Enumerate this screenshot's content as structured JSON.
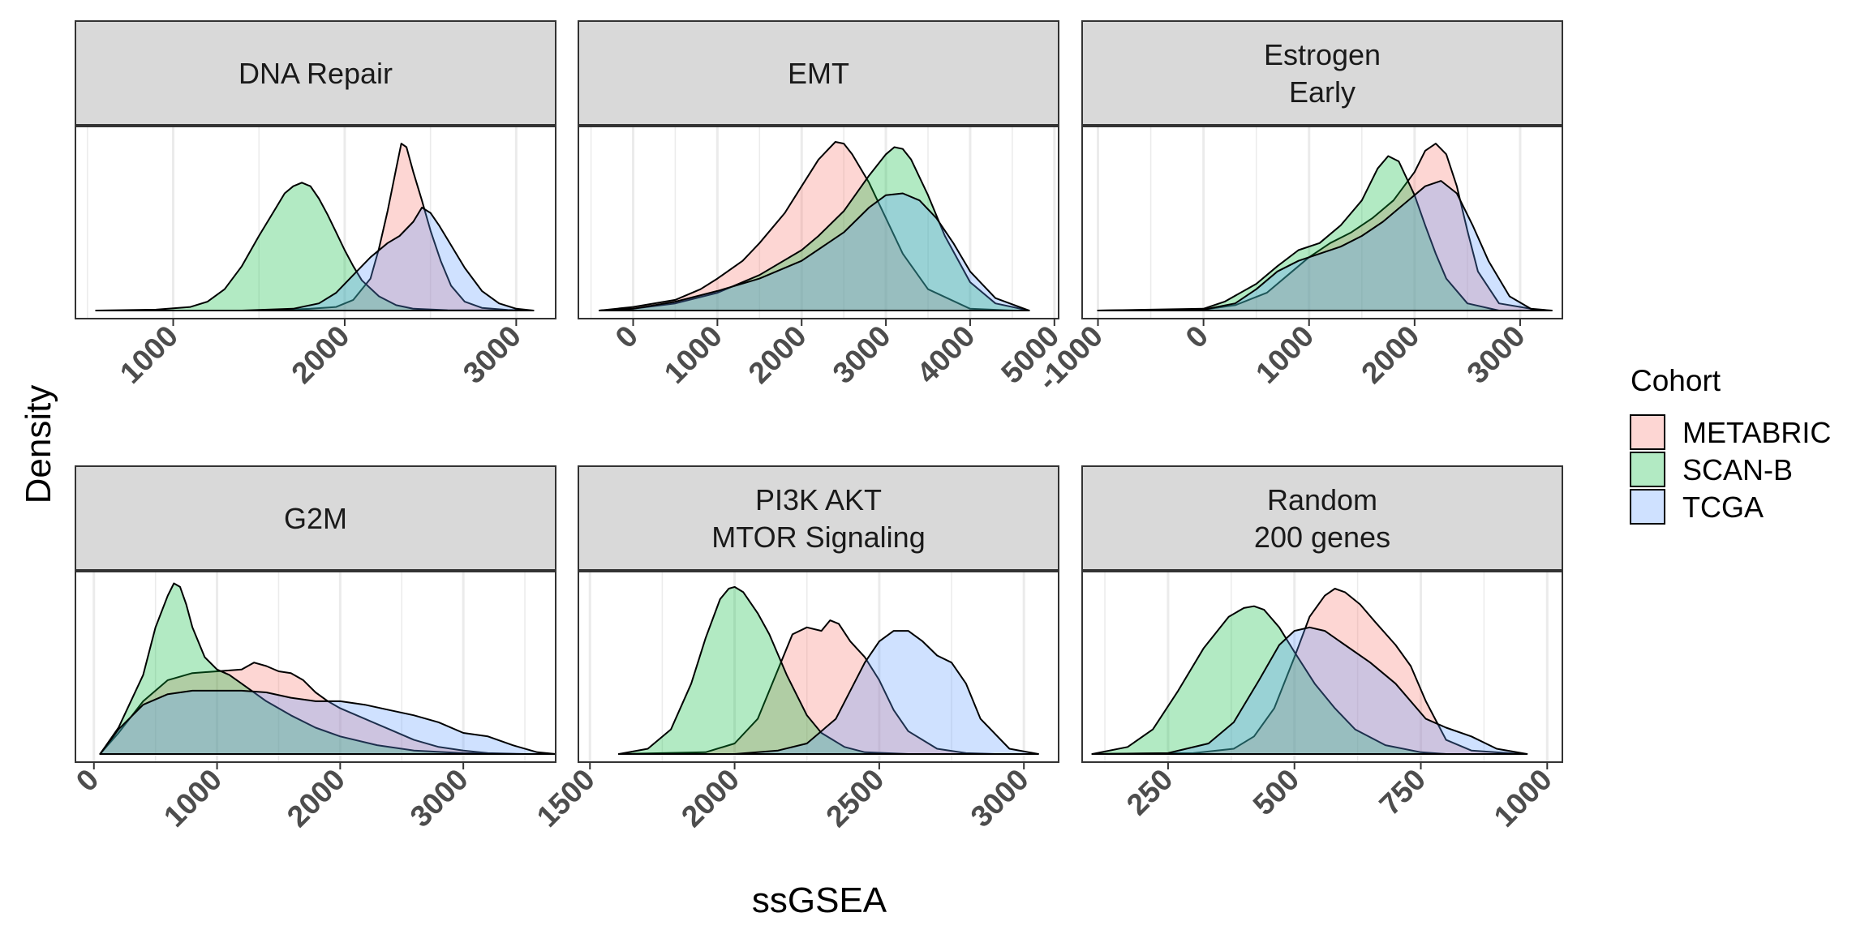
{
  "chart_data": {
    "type": "area",
    "subtype": "faceted density plot",
    "xlabel": "ssGSEA",
    "ylabel": "Density",
    "grid": true,
    "legend": {
      "title": "Cohort",
      "position": "right",
      "entries": [
        {
          "name": "METABRIC",
          "color": "#F8766D"
        },
        {
          "name": "SCAN-B",
          "color": "#00BA38"
        },
        {
          "name": "TCGA",
          "color": "#619CFF"
        }
      ]
    },
    "colors": {
      "METABRIC": "#F8766D",
      "SCAN-B": "#00BA38",
      "TCGA": "#619CFF",
      "strip_bg": "#D9D9D9",
      "grid": "#EBEBEB"
    },
    "facets": [
      {
        "title_lines": [
          "DNA Repair"
        ],
        "xlim": [
          430,
          3230
        ],
        "ticks": [
          1000,
          2000,
          3000
        ],
        "ymax": 1.0,
        "series": [
          {
            "name": "METABRIC",
            "x": [
              550,
              1500,
              1800,
              1950,
              2050,
              2150,
              2200,
              2250,
              2300,
              2330,
              2360,
              2400,
              2450,
              2500,
              2560,
              2620,
              2700,
              2800,
              2950,
              3100
            ],
            "y": [
              0,
              0,
              0.01,
              0.02,
              0.06,
              0.18,
              0.35,
              0.56,
              0.8,
              0.94,
              0.92,
              0.78,
              0.62,
              0.45,
              0.28,
              0.14,
              0.05,
              0.015,
              0.003,
              0
            ]
          },
          {
            "name": "SCAN-B",
            "x": [
              550,
              900,
              1100,
              1200,
              1300,
              1400,
              1500,
              1600,
              1650,
              1700,
              1750,
              1800,
              1850,
              1900,
              1950,
              2000,
              2050,
              2100,
              2200,
              2300,
              2400,
              2600,
              3100
            ],
            "y": [
              0,
              0.005,
              0.02,
              0.05,
              0.12,
              0.25,
              0.42,
              0.58,
              0.66,
              0.7,
              0.72,
              0.7,
              0.63,
              0.54,
              0.44,
              0.34,
              0.25,
              0.17,
              0.08,
              0.03,
              0.01,
              0.002,
              0
            ]
          },
          {
            "name": "TCGA",
            "x": [
              550,
              1400,
              1700,
              1850,
              1950,
              2050,
              2150,
              2250,
              2320,
              2400,
              2450,
              2500,
              2550,
              2600,
              2700,
              2800,
              2900,
              3000,
              3100
            ],
            "y": [
              0,
              0,
              0.01,
              0.04,
              0.1,
              0.2,
              0.3,
              0.38,
              0.42,
              0.5,
              0.58,
              0.55,
              0.48,
              0.4,
              0.24,
              0.11,
              0.04,
              0.01,
              0
            ]
          }
        ]
      },
      {
        "title_lines": [
          "EMT"
        ],
        "xlim": [
          -650,
          5050
        ],
        "ticks": [
          0,
          1000,
          2000,
          3000,
          4000,
          5000
        ],
        "ymax": 1.0,
        "series": [
          {
            "name": "METABRIC",
            "x": [
              -400,
              0,
              500,
              800,
              1000,
              1300,
              1500,
              1800,
              2000,
              2200,
              2400,
              2500,
              2600,
              2800,
              3000,
              3200,
              3500,
              4000,
              4500
            ],
            "y": [
              0,
              0.02,
              0.06,
              0.12,
              0.18,
              0.28,
              0.38,
              0.55,
              0.7,
              0.85,
              0.95,
              0.94,
              0.88,
              0.72,
              0.52,
              0.32,
              0.12,
              0.01,
              0
            ]
          },
          {
            "name": "SCAN-B",
            "x": [
              -400,
              0,
              500,
              1000,
              1500,
              2000,
              2200,
              2500,
              2800,
              3000,
              3100,
              3200,
              3300,
              3500,
              3700,
              4000,
              4300,
              4700
            ],
            "y": [
              0,
              0.01,
              0.04,
              0.1,
              0.2,
              0.34,
              0.42,
              0.56,
              0.76,
              0.88,
              0.92,
              0.91,
              0.85,
              0.65,
              0.42,
              0.16,
              0.04,
              0
            ]
          },
          {
            "name": "TCGA",
            "x": [
              -400,
              0,
              500,
              1000,
              1500,
              2000,
              2500,
              2800,
              3000,
              3200,
              3400,
              3600,
              3800,
              4000,
              4300,
              4700
            ],
            "y": [
              0,
              0.01,
              0.05,
              0.11,
              0.18,
              0.28,
              0.44,
              0.58,
              0.65,
              0.66,
              0.62,
              0.52,
              0.38,
              0.22,
              0.07,
              0
            ]
          }
        ]
      },
      {
        "title_lines": [
          "Estrogen",
          "Early"
        ],
        "xlim": [
          -1150,
          3400
        ],
        "ticks": [
          -1000,
          0,
          1000,
          2000,
          3000
        ],
        "ymax": 1.0,
        "series": [
          {
            "name": "METABRIC",
            "x": [
              -1000,
              0,
              300,
              600,
              800,
              1000,
              1200,
              1400,
              1600,
              1800,
              2000,
              2100,
              2200,
              2300,
              2400,
              2500,
              2600,
              2800,
              3200
            ],
            "y": [
              0,
              0.005,
              0.03,
              0.1,
              0.2,
              0.3,
              0.38,
              0.44,
              0.52,
              0.62,
              0.78,
              0.9,
              0.94,
              0.88,
              0.7,
              0.45,
              0.22,
              0.04,
              0
            ]
          },
          {
            "name": "SCAN-B",
            "x": [
              -1000,
              0,
              200,
              500,
              700,
              900,
              1100,
              1300,
              1500,
              1650,
              1750,
              1850,
              2000,
              2100,
              2200,
              2300,
              2500,
              2800
            ],
            "y": [
              0,
              0.01,
              0.05,
              0.15,
              0.25,
              0.34,
              0.38,
              0.48,
              0.62,
              0.8,
              0.87,
              0.84,
              0.65,
              0.48,
              0.32,
              0.18,
              0.04,
              0
            ]
          },
          {
            "name": "TCGA",
            "x": [
              -1000,
              0,
              300,
              500,
              700,
              900,
              1100,
              1300,
              1500,
              1700,
              1900,
              2100,
              2250,
              2400,
              2550,
              2700,
              2900,
              3100,
              3300
            ],
            "y": [
              0,
              0.005,
              0.04,
              0.12,
              0.22,
              0.28,
              0.32,
              0.36,
              0.42,
              0.5,
              0.6,
              0.7,
              0.73,
              0.66,
              0.48,
              0.28,
              0.08,
              0.01,
              0
            ]
          }
        ]
      },
      {
        "title_lines": [
          "G2M"
        ],
        "xlim": [
          -150,
          3750
        ],
        "ticks": [
          0,
          1000,
          2000,
          3000
        ],
        "ymax": 1.0,
        "series": [
          {
            "name": "METABRIC",
            "x": [
              50,
              200,
              400,
              600,
              800,
              1000,
              1200,
              1300,
              1400,
              1500,
              1600,
              1700,
              1800,
              1900,
              2000,
              2200,
              2400,
              2600,
              2800,
              3000,
              3200,
              3500
            ],
            "y": [
              0,
              0.12,
              0.3,
              0.42,
              0.46,
              0.47,
              0.48,
              0.52,
              0.5,
              0.47,
              0.46,
              0.42,
              0.35,
              0.3,
              0.26,
              0.2,
              0.14,
              0.08,
              0.04,
              0.02,
              0.005,
              0
            ]
          },
          {
            "name": "SCAN-B",
            "x": [
              50,
              200,
              400,
              500,
              600,
              650,
              700,
              750,
              800,
              900,
              1000,
              1100,
              1200,
              1400,
              1600,
              1800,
              2000,
              2300,
              2600,
              3000,
              3400
            ],
            "y": [
              0,
              0.15,
              0.45,
              0.72,
              0.9,
              0.97,
              0.95,
              0.85,
              0.72,
              0.55,
              0.48,
              0.45,
              0.4,
              0.3,
              0.22,
              0.15,
              0.1,
              0.05,
              0.02,
              0.005,
              0
            ]
          },
          {
            "name": "TCGA",
            "x": [
              50,
              200,
              400,
              600,
              800,
              1000,
              1200,
              1400,
              1600,
              1800,
              2000,
              2200,
              2400,
              2600,
              2800,
              3000,
              3200,
              3400,
              3600,
              3750
            ],
            "y": [
              0,
              0.14,
              0.28,
              0.34,
              0.36,
              0.36,
              0.36,
              0.35,
              0.32,
              0.3,
              0.3,
              0.28,
              0.25,
              0.22,
              0.18,
              0.12,
              0.1,
              0.05,
              0.01,
              0
            ]
          }
        ]
      },
      {
        "title_lines": [
          "PI3K AKT",
          "MTOR Signaling"
        ],
        "xlim": [
          1460,
          3120
        ],
        "ticks": [
          1500,
          2000,
          2500,
          3000
        ],
        "ymax": 1.0,
        "series": [
          {
            "name": "METABRIC",
            "x": [
              1600,
              1900,
              2000,
              2080,
              2150,
              2200,
              2250,
              2300,
              2330,
              2360,
              2400,
              2450,
              2500,
              2550,
              2600,
              2700,
              2800,
              2900
            ],
            "y": [
              0,
              0.01,
              0.06,
              0.2,
              0.48,
              0.68,
              0.72,
              0.7,
              0.76,
              0.74,
              0.64,
              0.55,
              0.42,
              0.25,
              0.13,
              0.03,
              0.005,
              0
            ]
          },
          {
            "name": "SCAN-B",
            "x": [
              1600,
              1700,
              1780,
              1850,
              1900,
              1950,
              1980,
              2000,
              2030,
              2080,
              2120,
              2180,
              2250,
              2300,
              2380,
              2450,
              2600
            ],
            "y": [
              0,
              0.03,
              0.14,
              0.4,
              0.66,
              0.88,
              0.94,
              0.95,
              0.92,
              0.8,
              0.68,
              0.45,
              0.22,
              0.12,
              0.04,
              0.01,
              0
            ]
          },
          {
            "name": "TCGA",
            "x": [
              1600,
              2000,
              2150,
              2250,
              2350,
              2450,
              2500,
              2550,
              2600,
              2650,
              2700,
              2750,
              2800,
              2850,
              2950,
              3050
            ],
            "y": [
              0,
              0,
              0.02,
              0.06,
              0.2,
              0.52,
              0.64,
              0.7,
              0.7,
              0.64,
              0.56,
              0.52,
              0.4,
              0.2,
              0.03,
              0
            ]
          }
        ]
      },
      {
        "title_lines": [
          "Random",
          "200 genes"
        ],
        "xlim": [
          80,
          1030
        ],
        "ticks": [
          250,
          500,
          750,
          1000
        ],
        "ymax": 1.0,
        "series": [
          {
            "name": "METABRIC",
            "x": [
              100,
              300,
              380,
              420,
              460,
              500,
              530,
              560,
              580,
              600,
              630,
              660,
              700,
              730,
              760,
              800,
              850,
              950
            ],
            "y": [
              0,
              0.005,
              0.03,
              0.1,
              0.26,
              0.55,
              0.78,
              0.9,
              0.94,
              0.92,
              0.85,
              0.75,
              0.62,
              0.5,
              0.3,
              0.08,
              0.02,
              0
            ]
          },
          {
            "name": "SCAN-B",
            "x": [
              100,
              170,
              220,
              270,
              320,
              370,
              400,
              420,
              440,
              470,
              500,
              540,
              580,
              620,
              680,
              750,
              800
            ],
            "y": [
              0,
              0.04,
              0.14,
              0.36,
              0.6,
              0.78,
              0.83,
              0.84,
              0.82,
              0.72,
              0.58,
              0.4,
              0.26,
              0.14,
              0.05,
              0.01,
              0
            ]
          },
          {
            "name": "TCGA",
            "x": [
              100,
              250,
              330,
              380,
              430,
              470,
              500,
              530,
              560,
              600,
              650,
              700,
              760,
              800,
              850,
              900,
              960
            ],
            "y": [
              0,
              0.005,
              0.06,
              0.18,
              0.42,
              0.62,
              0.7,
              0.72,
              0.7,
              0.62,
              0.52,
              0.4,
              0.2,
              0.15,
              0.1,
              0.03,
              0
            ]
          }
        ]
      }
    ]
  }
}
